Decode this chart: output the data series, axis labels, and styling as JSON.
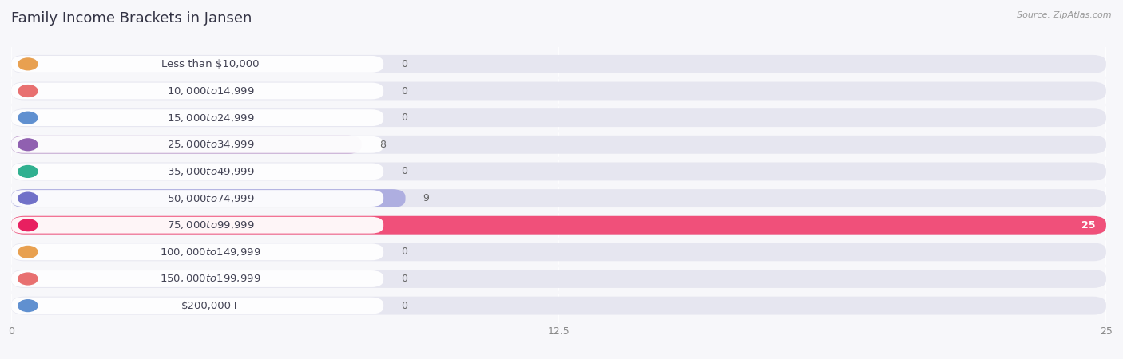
{
  "title": "Family Income Brackets in Jansen",
  "source": "Source: ZipAtlas.com",
  "categories": [
    "Less than $10,000",
    "$10,000 to $14,999",
    "$15,000 to $24,999",
    "$25,000 to $34,999",
    "$35,000 to $49,999",
    "$50,000 to $74,999",
    "$75,000 to $99,999",
    "$100,000 to $149,999",
    "$150,000 to $199,999",
    "$200,000+"
  ],
  "values": [
    0,
    0,
    0,
    8,
    0,
    9,
    25,
    0,
    0,
    0
  ],
  "bar_colors": [
    "#f6c98e",
    "#f4a59d",
    "#a9c8e8",
    "#c5a8d2",
    "#7ecec0",
    "#aeaee0",
    "#f0507a",
    "#f6c98e",
    "#f4a59d",
    "#a9c8e8"
  ],
  "dot_colors": [
    "#e8a050",
    "#e87070",
    "#6090d0",
    "#9060b0",
    "#30b090",
    "#7070c8",
    "#e82060",
    "#e8a050",
    "#e87070",
    "#6090d0"
  ],
  "background_color": "#f7f7fa",
  "bar_bg_color": "#e6e6f0",
  "xlim": [
    0,
    25
  ],
  "xticks": [
    0,
    12.5,
    25
  ],
  "title_fontsize": 13,
  "label_fontsize": 9.5,
  "value_fontsize": 9,
  "source_fontsize": 8
}
